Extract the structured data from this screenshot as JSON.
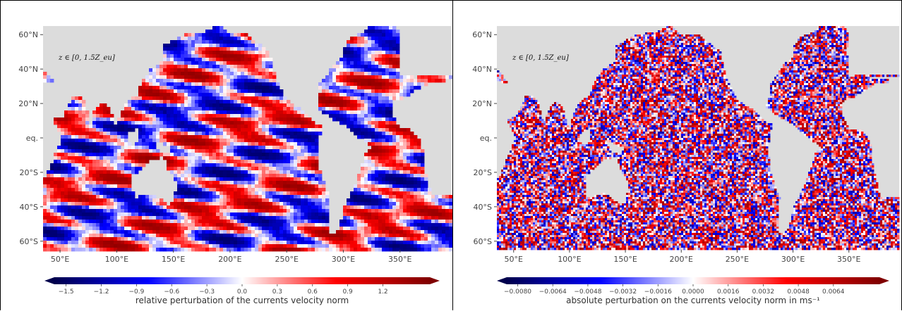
{
  "chart_data": [
    {
      "type": "heatmap",
      "title": "",
      "annotation": "z ∈ [0, 1.5Z_eu]",
      "x_tick_labels": [
        "50°E",
        "100°E",
        "150°E",
        "200°E",
        "250°E",
        "300°E",
        "350°E"
      ],
      "x_ticks": [
        50,
        100,
        150,
        200,
        250,
        300,
        350
      ],
      "xlim": [
        35,
        395
      ],
      "y_tick_labels": [
        "60°N",
        "40°N",
        "20°N",
        "eq.",
        "20°S",
        "40°S",
        "60°S"
      ],
      "y_ticks": [
        60,
        40,
        20,
        0,
        -20,
        -40,
        -60
      ],
      "ylim": [
        -65,
        65
      ],
      "colormap": "seismic",
      "colorbar": {
        "label": "relative perturbation of the currents velocity norm",
        "ticks": [
          -1.5,
          -1.2,
          -0.9,
          -0.6,
          -0.3,
          0.0,
          0.3,
          0.6,
          0.9,
          1.2
        ],
        "tick_labels": [
          "−1.5",
          "−1.2",
          "−0.9",
          "−0.6",
          "−0.3",
          "0.0",
          "0.3",
          "0.6",
          "0.9",
          "1.2"
        ],
        "range": [
          -1.6,
          1.6
        ],
        "extend": "both"
      },
      "land_color": "#dcdcdc"
    },
    {
      "type": "heatmap",
      "title": "",
      "annotation": "z ∈ [0, 1.5Z_eu]",
      "x_tick_labels": [
        "50°E",
        "100°E",
        "150°E",
        "200°E",
        "250°E",
        "300°E",
        "350°E"
      ],
      "x_ticks": [
        50,
        100,
        150,
        200,
        250,
        300,
        350
      ],
      "xlim": [
        35,
        395
      ],
      "y_tick_labels": [
        "60°N",
        "40°N",
        "20°N",
        "eq.",
        "20°S",
        "40°S",
        "60°S"
      ],
      "y_ticks": [
        60,
        40,
        20,
        0,
        -20,
        -40,
        -60
      ],
      "ylim": [
        -65,
        65
      ],
      "colormap": "seismic",
      "colorbar": {
        "label": "absolute perturbation on the currents velocity norm in ms⁻¹",
        "ticks": [
          -0.008,
          -0.0064,
          -0.0048,
          -0.0032,
          -0.0016,
          0.0,
          0.0016,
          0.0032,
          0.0048,
          0.0064
        ],
        "tick_labels": [
          "−0.0080",
          "−0.0064",
          "−0.0048",
          "−0.0032",
          "−0.0016",
          "0.0000",
          "0.0016",
          "0.0032",
          "0.0048",
          "0.0064"
        ],
        "range": [
          -0.0085,
          0.0085
        ],
        "extend": "both"
      },
      "land_color": "#dcdcdc"
    }
  ]
}
